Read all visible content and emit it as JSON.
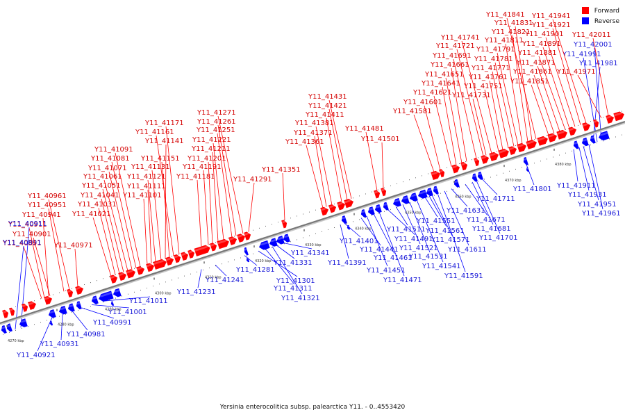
{
  "caption": "Yersinia enterocolitica subsp. palearctica Y11. - 0..4553420",
  "legend": [
    {
      "label": "Forward",
      "color": "#ff0000"
    },
    {
      "label": "Reverse",
      "color": "#0000ff"
    }
  ],
  "colors": {
    "forward": "#ff0000",
    "reverse": "#0000ff",
    "backbone": "#777777"
  },
  "ticks": [
    "4270 kbp",
    "4280 kbp",
    "4290 kbp",
    "4300 kbp",
    "4310 kbp",
    "4320 kbp",
    "4330 kbp",
    "4340 kbp",
    "4350 kbp",
    "4360 kbp",
    "4370 kbp",
    "4380 kbp"
  ],
  "forward_genes": [
    "Y11_40891",
    "Y11_40901",
    "Y11_40911",
    "Y11_40941",
    "Y11_40951",
    "Y11_40961",
    "Y11_40971",
    "Y11_41021",
    "Y11_41031",
    "Y11_41041",
    "Y11_41051",
    "Y11_41061",
    "Y11_41071",
    "Y11_41081",
    "Y11_41091",
    "Y11_41101",
    "Y11_41111",
    "Y11_41121",
    "Y11_41131",
    "Y11_41141",
    "Y11_41151",
    "Y11_41161",
    "Y11_41171",
    "Y11_41181",
    "Y11_41191",
    "Y11_41201",
    "Y11_41211",
    "Y11_41221",
    "Y11_41251",
    "Y11_41261",
    "Y11_41271",
    "Y11_41291",
    "Y11_41351",
    "Y11_41361",
    "Y11_41371",
    "Y11_41381",
    "Y11_41411",
    "Y11_41421",
    "Y11_41431",
    "Y11_41481",
    "Y11_41501",
    "Y11_41581",
    "Y11_41601",
    "Y11_41621",
    "Y11_41641",
    "Y11_41651",
    "Y11_41661",
    "Y11_41691",
    "Y11_41721",
    "Y11_41731",
    "Y11_41741",
    "Y11_41751",
    "Y11_41761",
    "Y11_41771",
    "Y11_41781",
    "Y11_41791",
    "Y11_41811",
    "Y11_41821",
    "Y11_41831",
    "Y11_41841",
    "Y11_41851",
    "Y11_41861",
    "Y11_41871",
    "Y11_41881",
    "Y11_41891",
    "Y11_41901",
    "Y11_41921",
    "Y11_41941",
    "Y11_41971",
    "Y11_42011"
  ],
  "reverse_genes": [
    "Y11_40891",
    "Y11_40911",
    "Y11_40921",
    "Y11_40931",
    "Y11_40981",
    "Y11_40991",
    "Y11_41001",
    "Y11_41011",
    "Y11_41231",
    "Y11_41241",
    "Y11_41281",
    "Y11_41301",
    "Y11_41311",
    "Y11_41321",
    "Y11_41331",
    "Y11_41341",
    "Y11_41391",
    "Y11_41401",
    "Y11_41441",
    "Y11_41451",
    "Y11_41461",
    "Y11_41471",
    "Y11_41491",
    "Y11_41511",
    "Y11_41521",
    "Y11_41531",
    "Y11_41541",
    "Y11_41551",
    "Y11_41561",
    "Y11_41571",
    "Y11_41591",
    "Y11_41611",
    "Y11_41631",
    "Y11_41671",
    "Y11_41681",
    "Y11_41701",
    "Y11_41711",
    "Y11_41801",
    "Y11_41911",
    "Y11_41931",
    "Y11_41951",
    "Y11_41961",
    "Y11_41981",
    "Y11_41991",
    "Y11_42001"
  ]
}
